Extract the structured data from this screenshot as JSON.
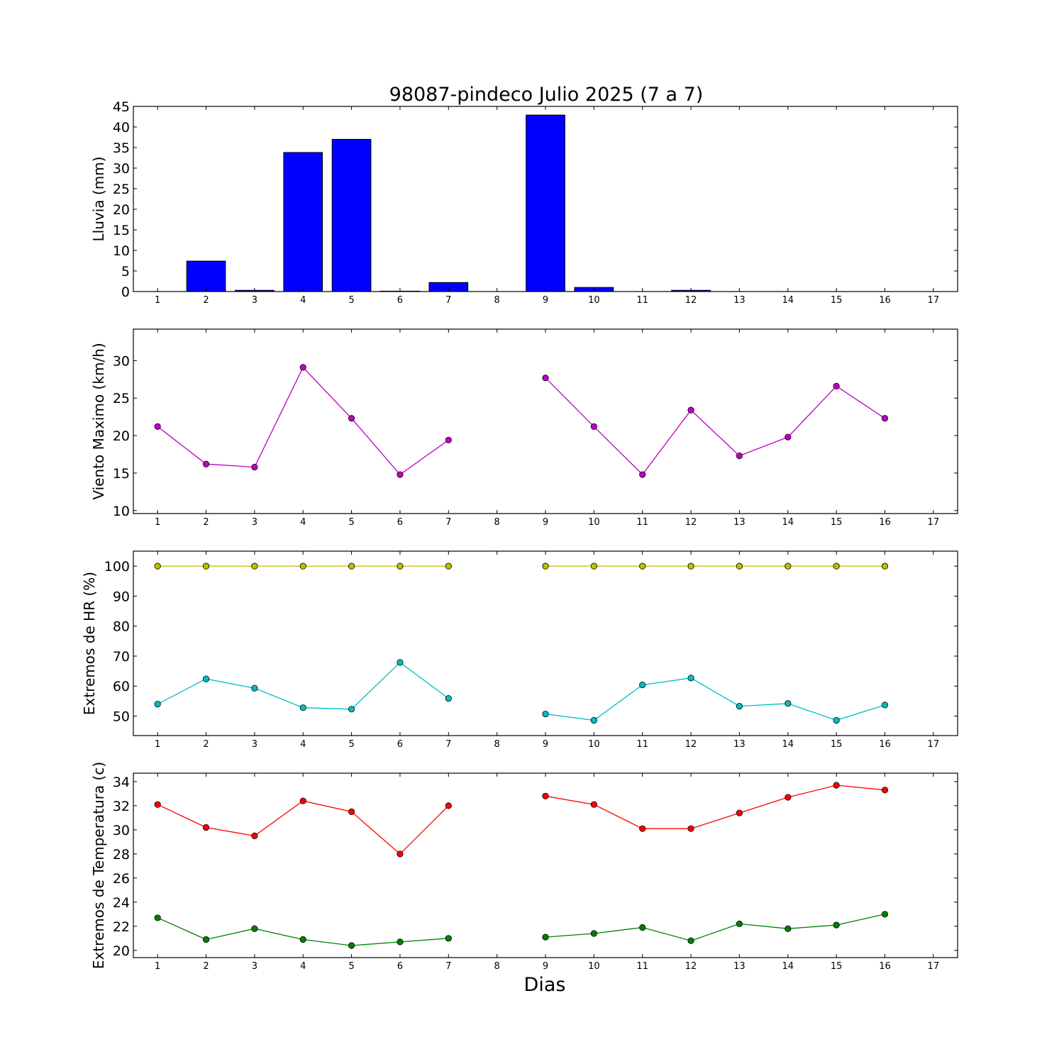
{
  "figure": {
    "title": "98087-pindeco Julio 2025  (7 a 7)",
    "xlabel": "Dias"
  },
  "chart_data": [
    {
      "type": "bar",
      "ylabel": "Lluvia (mm)",
      "ylim": [
        0,
        45
      ],
      "yticks": [
        0,
        5,
        10,
        15,
        20,
        25,
        30,
        35,
        40,
        45
      ],
      "xlim": [
        0.5,
        17.5
      ],
      "xticks": [
        1,
        2,
        3,
        4,
        5,
        6,
        7,
        8,
        9,
        10,
        11,
        12,
        13,
        14,
        15,
        16,
        17
      ],
      "grid": false,
      "series": [
        {
          "color": "#0000ff",
          "x": [
            1,
            2,
            3,
            4,
            5,
            6,
            7,
            8,
            9,
            10,
            11,
            12,
            13,
            14,
            15,
            16,
            17
          ],
          "values": [
            0,
            7.4,
            0.3,
            33.8,
            37.0,
            0.1,
            2.2,
            null,
            42.9,
            1.0,
            0,
            0.3,
            0,
            0,
            0,
            0,
            null
          ]
        }
      ]
    },
    {
      "type": "line",
      "ylabel": "Viento Maximo (km/h)",
      "ylim": [
        9.6,
        34.2
      ],
      "yticks": [
        10,
        15,
        20,
        25,
        30
      ],
      "xlim": [
        0.5,
        17.5
      ],
      "xticks": [
        1,
        2,
        3,
        4,
        5,
        6,
        7,
        8,
        9,
        10,
        11,
        12,
        13,
        14,
        15,
        16,
        17
      ],
      "grid": false,
      "series": [
        {
          "color": "#bf00bf",
          "x": [
            1,
            2,
            3,
            4,
            5,
            6,
            7,
            8,
            9,
            10,
            11,
            12,
            13,
            14,
            15,
            16
          ],
          "values": [
            21.2,
            16.2,
            15.8,
            29.1,
            22.3,
            14.8,
            19.4,
            null,
            27.7,
            21.2,
            14.8,
            23.4,
            17.3,
            19.8,
            26.6,
            22.3
          ]
        }
      ]
    },
    {
      "type": "line",
      "ylabel": "Extremos de HR (%)",
      "ylim": [
        43.5,
        105
      ],
      "yticks": [
        50,
        60,
        70,
        80,
        90,
        100
      ],
      "xlim": [
        0.5,
        17.5
      ],
      "xticks": [
        1,
        2,
        3,
        4,
        5,
        6,
        7,
        8,
        9,
        10,
        11,
        12,
        13,
        14,
        15,
        16,
        17
      ],
      "grid": false,
      "series": [
        {
          "color": "#bfbf00",
          "x": [
            1,
            2,
            3,
            4,
            5,
            6,
            7,
            8,
            9,
            10,
            11,
            12,
            13,
            14,
            15,
            16
          ],
          "values": [
            100,
            100,
            100,
            100,
            100,
            100,
            100,
            null,
            100,
            100,
            100,
            100,
            100,
            100,
            100,
            100
          ]
        },
        {
          "color": "#00bfbf",
          "x": [
            1,
            2,
            3,
            4,
            5,
            6,
            7,
            8,
            9,
            10,
            11,
            12,
            13,
            14,
            15,
            16
          ],
          "values": [
            54.0,
            62.4,
            59.3,
            52.8,
            52.3,
            67.9,
            55.9,
            null,
            50.7,
            48.6,
            60.4,
            62.7,
            53.3,
            54.2,
            48.6,
            53.7
          ]
        }
      ]
    },
    {
      "type": "line",
      "ylabel": "Extremos de Temperatura (c)",
      "ylim": [
        19.4,
        34.7
      ],
      "yticks": [
        20,
        22,
        24,
        26,
        28,
        30,
        32,
        34
      ],
      "xlim": [
        0.5,
        17.5
      ],
      "xticks": [
        1,
        2,
        3,
        4,
        5,
        6,
        7,
        8,
        9,
        10,
        11,
        12,
        13,
        14,
        15,
        16,
        17
      ],
      "grid": false,
      "series": [
        {
          "color": "#ff0000",
          "x": [
            1,
            2,
            3,
            4,
            5,
            6,
            7,
            8,
            9,
            10,
            11,
            12,
            13,
            14,
            15,
            16
          ],
          "values": [
            32.1,
            30.2,
            29.5,
            32.4,
            31.5,
            28.0,
            32.0,
            null,
            32.8,
            32.1,
            30.1,
            30.1,
            31.4,
            32.7,
            33.7,
            33.3
          ]
        },
        {
          "color": "#008000",
          "x": [
            1,
            2,
            3,
            4,
            5,
            6,
            7,
            8,
            9,
            10,
            11,
            12,
            13,
            14,
            15,
            16
          ],
          "values": [
            22.7,
            20.9,
            21.8,
            20.9,
            20.4,
            20.7,
            21.0,
            null,
            21.1,
            21.4,
            21.9,
            20.8,
            22.2,
            21.8,
            22.1,
            23.0
          ]
        }
      ]
    }
  ]
}
